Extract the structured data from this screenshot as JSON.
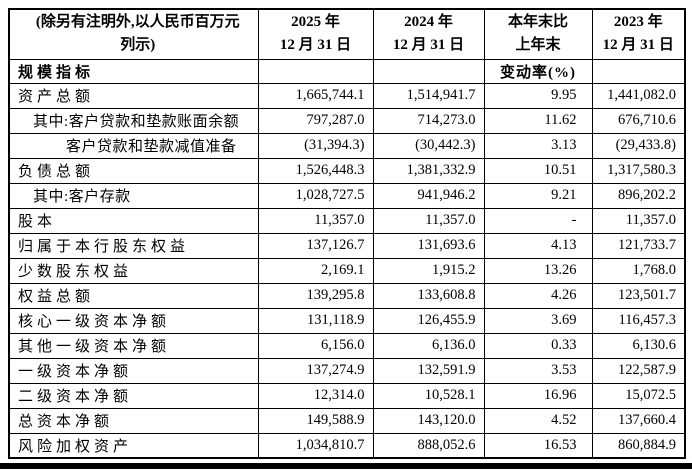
{
  "colors": {
    "background": "#ffffff",
    "text": "#000000",
    "border": "#000000",
    "bottom_bar": "#000000"
  },
  "table": {
    "note": {
      "line1": "(除另有注明外,以人民币百万元",
      "line2": "列示)"
    },
    "columns": [
      {
        "line1": "2025 年",
        "line2": "12 月 31 日"
      },
      {
        "line1": "2024 年",
        "line2": "12 月 31 日"
      },
      {
        "line1": "本年末比",
        "line2": "上年末"
      },
      {
        "line1": "2023 年",
        "line2": "12 月 31 日"
      }
    ],
    "section": {
      "label": "规模指标",
      "change_header": "变动率(%)"
    },
    "rows": [
      {
        "label": "资产总额",
        "indent": 0,
        "values": [
          "1,665,744.1",
          "1,514,941.7",
          "9.95",
          "1,441,082.0"
        ]
      },
      {
        "label": "其中:客户贷款和垫款账面余额",
        "indent": 1,
        "values": [
          "797,287.0",
          "714,273.0",
          "11.62",
          "676,710.6"
        ]
      },
      {
        "label": "客户贷款和垫款减值准备",
        "indent": 2,
        "values": [
          "(31,394.3)",
          "(30,442.3)",
          "3.13",
          "(29,433.8)"
        ]
      },
      {
        "label": "负债总额",
        "indent": 0,
        "values": [
          "1,526,448.3",
          "1,381,332.9",
          "10.51",
          "1,317,580.3"
        ]
      },
      {
        "label": "其中:客户存款",
        "indent": 1,
        "values": [
          "1,028,727.5",
          "941,946.2",
          "9.21",
          "896,202.2"
        ]
      },
      {
        "label": "股本",
        "indent": 0,
        "values": [
          "11,357.0",
          "11,357.0",
          "-",
          "11,357.0"
        ]
      },
      {
        "label": "归属于本行股东权益",
        "indent": 0,
        "values": [
          "137,126.7",
          "131,693.6",
          "4.13",
          "121,733.7"
        ]
      },
      {
        "label": "少数股东权益",
        "indent": 0,
        "values": [
          "2,169.1",
          "1,915.2",
          "13.26",
          "1,768.0"
        ]
      },
      {
        "label": "权益总额",
        "indent": 0,
        "values": [
          "139,295.8",
          "133,608.8",
          "4.26",
          "123,501.7"
        ]
      },
      {
        "label": "核心一级资本净额",
        "indent": 0,
        "values": [
          "131,118.9",
          "126,455.9",
          "3.69",
          "116,457.3"
        ]
      },
      {
        "label": "其他一级资本净额",
        "indent": 0,
        "values": [
          "6,156.0",
          "6,136.0",
          "0.33",
          "6,130.6"
        ]
      },
      {
        "label": "一级资本净额",
        "indent": 0,
        "values": [
          "137,274.9",
          "132,591.9",
          "3.53",
          "122,587.9"
        ]
      },
      {
        "label": "二级资本净额",
        "indent": 0,
        "values": [
          "12,314.0",
          "10,528.1",
          "16.96",
          "15,072.5"
        ]
      },
      {
        "label": "总资本净额",
        "indent": 0,
        "values": [
          "149,588.9",
          "143,120.0",
          "4.52",
          "137,660.4"
        ]
      },
      {
        "label": "风险加权资产",
        "indent": 0,
        "values": [
          "1,034,810.7",
          "888,052.6",
          "16.53",
          "860,884.9"
        ]
      }
    ]
  }
}
